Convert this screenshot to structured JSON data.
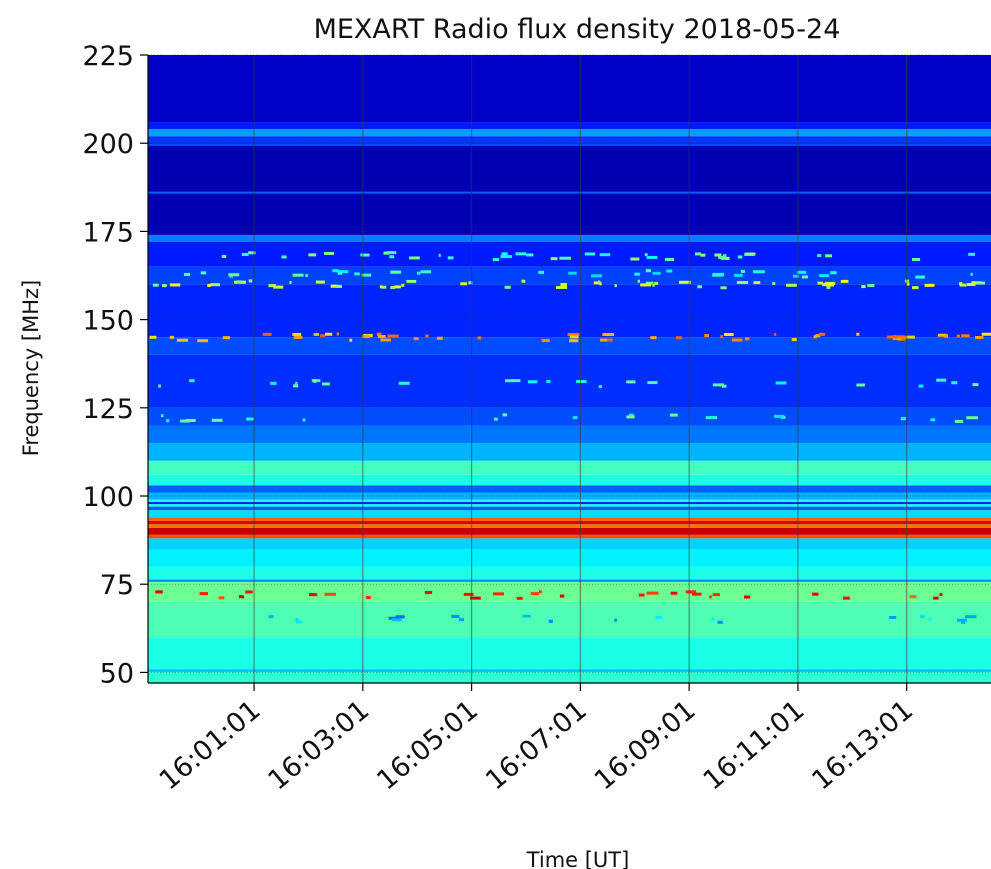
{
  "chart_data": {
    "type": "heatmap",
    "title": "MEXART Radio flux density 2018-05-24",
    "xlabel": "Time [UT]",
    "ylabel": "Frequency [MHz]",
    "colormap": "jet",
    "x_range": [
      "15:59:04",
      "16:14:34"
    ],
    "ylim": [
      47,
      225
    ],
    "y_ticks": [
      50,
      75,
      100,
      125,
      150,
      175,
      200,
      225
    ],
    "x_ticks": [
      "16:01:01",
      "16:03:01",
      "16:05:01",
      "16:07:01",
      "16:09:01",
      "16:11:01",
      "16:13:01"
    ],
    "grid": true,
    "frequency_profile": [
      {
        "from": 47,
        "to": 50,
        "level": 0.42
      },
      {
        "from": 50,
        "to": 60,
        "level": 0.4
      },
      {
        "from": 60,
        "to": 70,
        "level": 0.45
      },
      {
        "from": 70,
        "to": 76,
        "level": 0.48
      },
      {
        "from": 76,
        "to": 80,
        "level": 0.4
      },
      {
        "from": 80,
        "to": 85,
        "level": 0.36
      },
      {
        "from": 85,
        "to": 88,
        "level": 0.33
      },
      {
        "from": 88,
        "to": 89,
        "level": 0.8
      },
      {
        "from": 89,
        "to": 91,
        "level": 0.93
      },
      {
        "from": 91,
        "to": 92,
        "level": 0.76
      },
      {
        "from": 92,
        "to": 93,
        "level": 0.9
      },
      {
        "from": 93,
        "to": 94,
        "level": 0.78
      },
      {
        "from": 94,
        "to": 96,
        "level": 0.34
      },
      {
        "from": 96,
        "to": 97,
        "level": 0.22
      },
      {
        "from": 97,
        "to": 99,
        "level": 0.4
      },
      {
        "from": 99,
        "to": 101,
        "level": 0.3
      },
      {
        "from": 101,
        "to": 103,
        "level": 0.22
      },
      {
        "from": 103,
        "to": 106,
        "level": 0.4
      },
      {
        "from": 106,
        "to": 110,
        "level": 0.44
      },
      {
        "from": 110,
        "to": 115,
        "level": 0.3
      },
      {
        "from": 115,
        "to": 120,
        "level": 0.24
      },
      {
        "from": 120,
        "to": 125,
        "level": 0.2
      },
      {
        "from": 125,
        "to": 140,
        "level": 0.17
      },
      {
        "from": 140,
        "to": 145,
        "level": 0.2
      },
      {
        "from": 145,
        "to": 160,
        "level": 0.16
      },
      {
        "from": 160,
        "to": 165,
        "level": 0.19
      },
      {
        "from": 165,
        "to": 172,
        "level": 0.15
      },
      {
        "from": 172,
        "to": 174,
        "level": 0.25
      },
      {
        "from": 174,
        "to": 200,
        "level": 0.05
      },
      {
        "from": 200,
        "to": 202,
        "level": 0.18
      },
      {
        "from": 202,
        "to": 204,
        "level": 0.28
      },
      {
        "from": 204,
        "to": 206,
        "level": 0.15
      },
      {
        "from": 206,
        "to": 225,
        "level": 0.07
      }
    ],
    "thin_lines": [
      {
        "freq": 50.5,
        "level": 0.3
      },
      {
        "freq": 76,
        "level": 0.25
      },
      {
        "freq": 98,
        "level": 0.15
      },
      {
        "freq": 186,
        "level": 0.22
      },
      {
        "freq": 199.5,
        "level": 0.2
      }
    ]
  }
}
